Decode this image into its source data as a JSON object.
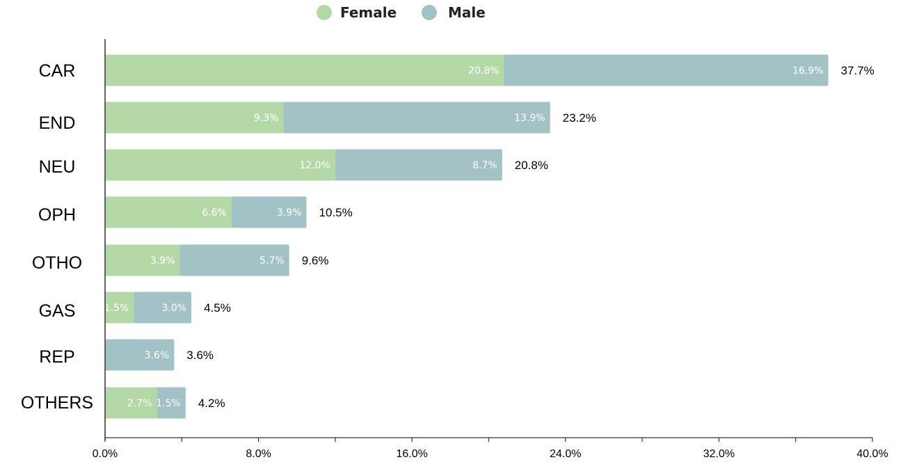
{
  "chart_data": {
    "type": "bar",
    "orientation": "horizontal",
    "stacked": true,
    "categories": [
      "CAR",
      "END",
      "NEU",
      "OPH",
      "OTHO",
      "GAS",
      "REP",
      "OTHERS"
    ],
    "series": [
      {
        "name": "Female",
        "color": "#b5d8a7",
        "values": [
          20.8,
          9.3,
          12.0,
          6.6,
          3.9,
          1.5,
          0.0,
          2.7
        ],
        "labels": [
          "20.8%",
          "9.3%",
          "12.0%",
          "6.6%",
          "3.9%",
          "1.5%",
          "",
          "2.7%"
        ]
      },
      {
        "name": "Male",
        "color": "#a2c2c6",
        "values": [
          16.9,
          13.9,
          8.7,
          3.9,
          5.7,
          3.0,
          3.6,
          1.5
        ],
        "labels": [
          "16.9%",
          "13.9%",
          "8.7%",
          "3.9%",
          "5.7%",
          "3.0%",
          "3.6%",
          "1.5%"
        ]
      }
    ],
    "totals": [
      37.7,
      23.2,
      20.8,
      10.5,
      9.6,
      4.5,
      3.6,
      4.2
    ],
    "total_labels": [
      "37.7%",
      "23.2%",
      "20.8%",
      "10.5%",
      "9.6%",
      "4.5%",
      "3.6%",
      "4.2%"
    ],
    "xlim": [
      0,
      40
    ],
    "xticks": [
      0,
      8,
      16,
      24,
      32,
      40
    ],
    "xtick_labels": [
      "0.0%",
      "8.0%",
      "16.0%",
      "24.0%",
      "32.0%",
      "40.0%"
    ],
    "minor_xticks": [
      4,
      12,
      20,
      28,
      36
    ],
    "legend": {
      "position": "top-center",
      "entries": [
        "Female",
        "Male"
      ]
    },
    "grid": false,
    "title": "",
    "xlabel": "",
    "ylabel": ""
  }
}
